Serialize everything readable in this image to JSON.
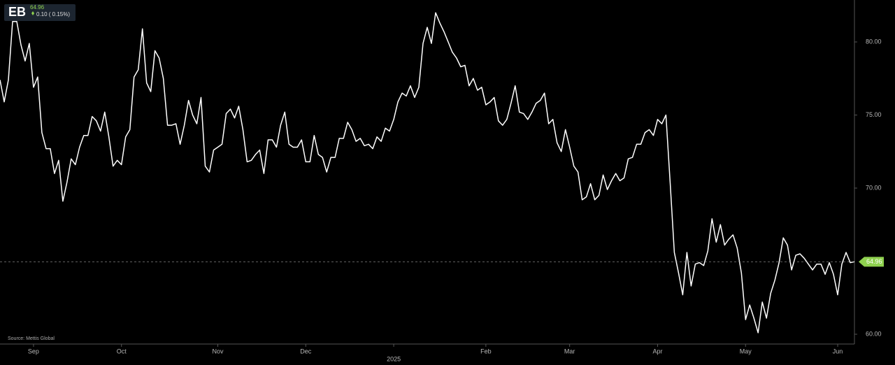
{
  "chart_data": {
    "type": "line",
    "header": {
      "ticker": "EB",
      "price": "64.96",
      "change": "0.10 ( 0.15%)"
    },
    "source": "Source: Mettis Global",
    "color": "#ffffff",
    "values": [
      77.4,
      75.9,
      77.4,
      81.4,
      81.4,
      79.8,
      78.7,
      79.9,
      76.9,
      77.6,
      73.8,
      72.7,
      72.7,
      71.0,
      71.9,
      69.1,
      70.4,
      72.0,
      71.6,
      72.8,
      73.6,
      73.6,
      74.9,
      74.6,
      73.9,
      75.2,
      73.5,
      71.5,
      71.9,
      71.6,
      73.5,
      74.0,
      77.6,
      78.1,
      80.9,
      77.2,
      76.6,
      79.4,
      78.9,
      77.5,
      74.3,
      74.3,
      74.4,
      73.0,
      74.3,
      76.0,
      75.0,
      74.4,
      76.2,
      71.5,
      71.1,
      72.6,
      72.8,
      73.0,
      75.1,
      75.4,
      74.8,
      75.6,
      74.0,
      71.8,
      71.9,
      72.3,
      72.6,
      71.0,
      73.3,
      73.3,
      72.8,
      74.3,
      75.2,
      73.0,
      72.8,
      72.8,
      73.3,
      71.8,
      71.8,
      73.6,
      72.3,
      72.1,
      71.1,
      72.1,
      72.1,
      73.4,
      73.4,
      74.5,
      74.0,
      73.2,
      73.4,
      72.9,
      73.0,
      72.7,
      73.5,
      73.2,
      74.1,
      73.9,
      74.7,
      75.9,
      76.5,
      76.3,
      77.0,
      76.2,
      76.9,
      79.9,
      81.0,
      79.9,
      82.0,
      81.3,
      80.7,
      80.0,
      79.3,
      78.9,
      78.3,
      78.4,
      77.0,
      77.5,
      76.7,
      76.9,
      75.7,
      75.9,
      76.2,
      74.6,
      74.3,
      74.7,
      75.8,
      77.0,
      75.2,
      75.1,
      74.7,
      75.2,
      75.8,
      76.0,
      76.5,
      74.4,
      74.7,
      73.1,
      72.5,
      74.0,
      72.8,
      71.5,
      71.1,
      69.2,
      69.4,
      70.3,
      69.2,
      69.5,
      70.9,
      69.9,
      70.5,
      71.0,
      70.5,
      70.7,
      72.0,
      72.1,
      73.0,
      73.0,
      73.8,
      74.0,
      73.6,
      74.7,
      74.4,
      75.0,
      70.4,
      65.6,
      64.2,
      62.7,
      65.6,
      63.3,
      64.8,
      64.9,
      64.7,
      65.7,
      67.9,
      66.3,
      67.5,
      66.1,
      66.5,
      66.8,
      65.9,
      64.2,
      61.0,
      62.0,
      61.1,
      60.1,
      62.2,
      61.1,
      62.8,
      63.7,
      64.9,
      66.6,
      66.1,
      64.4,
      65.4,
      65.5,
      65.2,
      64.8,
      64.4,
      64.8,
      64.8,
      64.1,
      64.9,
      64.1,
      62.7,
      64.8,
      65.6,
      64.9,
      64.96
    ],
    "last": {
      "value": 64.96,
      "label": "64.96"
    },
    "ylim": [
      59.33,
      82.87
    ],
    "yticks": [
      {
        "value": 60,
        "label": "60.00"
      },
      {
        "value": 70,
        "label": "70.00"
      },
      {
        "value": 75,
        "label": "75.00"
      },
      {
        "value": 80,
        "label": "80.00"
      }
    ],
    "xticks": [
      {
        "value": 8,
        "label": "Sep"
      },
      {
        "value": 29,
        "label": "Oct"
      },
      {
        "value": 52,
        "label": "Nov"
      },
      {
        "value": 73,
        "label": "Dec"
      },
      {
        "value": 116,
        "label": "Feb"
      },
      {
        "value": 136,
        "label": "Mar"
      },
      {
        "value": 157,
        "label": "Apr"
      },
      {
        "value": 178,
        "label": "May"
      },
      {
        "value": 200,
        "label": "Jun"
      }
    ],
    "year_ticks": [
      {
        "value": 94,
        "label": "2025"
      }
    ]
  }
}
